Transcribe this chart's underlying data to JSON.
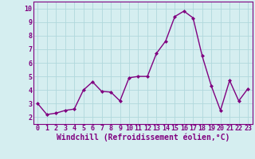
{
  "x": [
    0,
    1,
    2,
    3,
    4,
    5,
    6,
    7,
    8,
    9,
    10,
    11,
    12,
    13,
    14,
    15,
    16,
    17,
    18,
    19,
    20,
    21,
    22,
    23
  ],
  "y": [
    3.0,
    2.2,
    2.3,
    2.5,
    2.6,
    4.0,
    4.6,
    3.9,
    3.85,
    3.2,
    4.9,
    5.0,
    5.0,
    6.7,
    7.6,
    9.4,
    9.8,
    9.3,
    6.5,
    4.3,
    2.5,
    4.7,
    3.2,
    4.1
  ],
  "line_color": "#800080",
  "marker": "D",
  "marker_size": 2.0,
  "linewidth": 1.0,
  "xlabel": "Windchill (Refroidissement éolien,°C)",
  "xlim": [
    -0.5,
    23.5
  ],
  "ylim": [
    1.5,
    10.5
  ],
  "yticks": [
    2,
    3,
    4,
    5,
    6,
    7,
    8,
    9,
    10
  ],
  "xticks": [
    0,
    1,
    2,
    3,
    4,
    5,
    6,
    7,
    8,
    9,
    10,
    11,
    12,
    13,
    14,
    15,
    16,
    17,
    18,
    19,
    20,
    21,
    22,
    23
  ],
  "background_color": "#d5eef0",
  "grid_color": "#b0d8dc",
  "tick_label_fontsize": 6.0,
  "xlabel_fontsize": 7.0
}
